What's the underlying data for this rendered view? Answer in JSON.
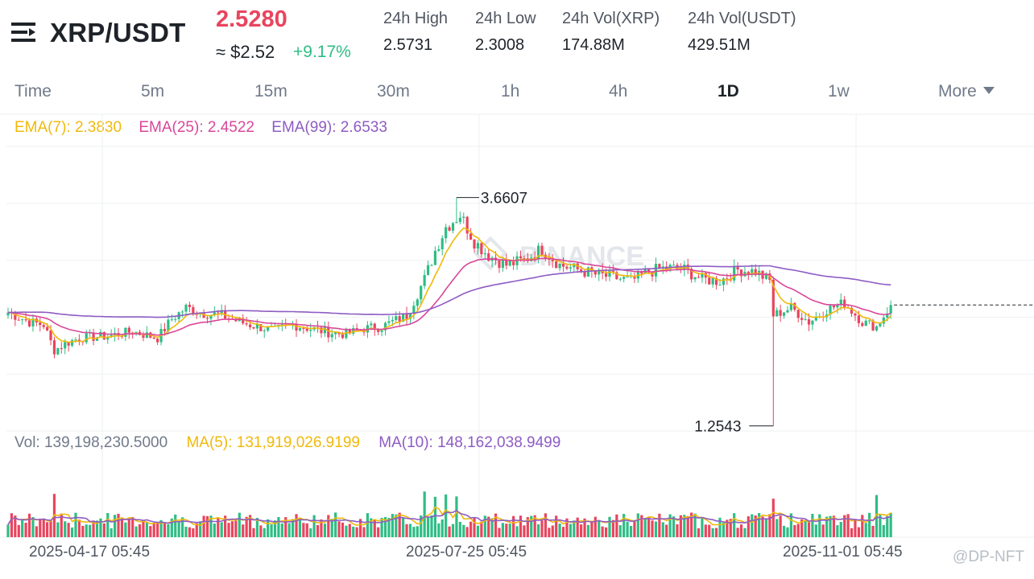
{
  "header": {
    "pair": "XRP/USDT",
    "last_price": "2.5280",
    "approx_price": "≈ $2.52",
    "change": "+9.17%",
    "stats": [
      {
        "label": "24h High",
        "value": "2.5731"
      },
      {
        "label": "24h Low",
        "value": "2.3008"
      },
      {
        "label": "24h Vol(XRP)",
        "value": "174.88M"
      },
      {
        "label": "24h Vol(USDT)",
        "value": "429.51M"
      }
    ]
  },
  "tabs": [
    {
      "label": "Time"
    },
    {
      "label": "5m"
    },
    {
      "label": "15m"
    },
    {
      "label": "30m"
    },
    {
      "label": "1h"
    },
    {
      "label": "4h"
    },
    {
      "label": "1D"
    },
    {
      "label": "1w"
    },
    {
      "label": "More"
    }
  ],
  "active_tab": "1D",
  "colors": {
    "up": "#2ebd85",
    "down": "#e8455e",
    "ema7": "#f0b90b",
    "ema25": "#d9479a",
    "ema99": "#8e5cc4",
    "ma5": "#f0b90b",
    "ma10": "#8e5cc4"
  },
  "watermark": "BINANCE",
  "footer_watermark": "@DP-NFT",
  "chart_data": {
    "type": "candlestick",
    "interval": "1D",
    "indicators": {
      "ema7": {
        "label": "EMA(7): 2.3830",
        "value": 2.383
      },
      "ema25": {
        "label": "EMA(25): 2.4522",
        "value": 2.4522
      },
      "ema99": {
        "label": "EMA(99): 2.6533",
        "value": 2.6533
      }
    },
    "annotations": {
      "high": {
        "label": "3.6607",
        "value": 3.6607
      },
      "low": {
        "label": "1.2543",
        "value": 1.2543
      }
    },
    "last_price": 2.528,
    "y_range": [
      1.2,
      4.2
    ],
    "grid": true,
    "x_labels": [
      "2025-04-17 05:45",
      "2025-07-25 05:45",
      "2025-11-01 05:45"
    ],
    "volume": {
      "vol_label": "Vol: 139,198,230.5000",
      "ma5_label": "MA(5): 131,919,026.9199",
      "ma10_label": "MA(10): 148,162,038.9499"
    },
    "close_path": [
      [
        0,
        2.45
      ],
      [
        6,
        2.35
      ],
      [
        10,
        2.32
      ],
      [
        13,
        2.05
      ],
      [
        16,
        2.12
      ],
      [
        20,
        2.18
      ],
      [
        28,
        2.2
      ],
      [
        35,
        2.25
      ],
      [
        42,
        2.18
      ],
      [
        46,
        2.38
      ],
      [
        50,
        2.5
      ],
      [
        55,
        2.44
      ],
      [
        60,
        2.42
      ],
      [
        65,
        2.35
      ],
      [
        70,
        2.3
      ],
      [
        75,
        2.26
      ],
      [
        80,
        2.32
      ],
      [
        85,
        2.28
      ],
      [
        90,
        2.24
      ],
      [
        95,
        2.22
      ],
      [
        100,
        2.28
      ],
      [
        105,
        2.3
      ],
      [
        112,
        2.42
      ],
      [
        117,
        2.8
      ],
      [
        120,
        3.1
      ],
      [
        123,
        3.35
      ],
      [
        127,
        3.48
      ],
      [
        131,
        3.2
      ],
      [
        135,
        3.05
      ],
      [
        140,
        2.95
      ],
      [
        145,
        3.0
      ],
      [
        150,
        3.12
      ],
      [
        155,
        2.95
      ],
      [
        160,
        2.9
      ],
      [
        165,
        2.85
      ],
      [
        170,
        2.82
      ],
      [
        175,
        2.78
      ],
      [
        180,
        2.88
      ],
      [
        185,
        2.92
      ],
      [
        190,
        2.9
      ],
      [
        195,
        2.8
      ],
      [
        200,
        2.78
      ],
      [
        205,
        2.9
      ],
      [
        210,
        2.88
      ],
      [
        214,
        2.78
      ],
      [
        215,
        2.42
      ],
      [
        220,
        2.5
      ],
      [
        225,
        2.35
      ],
      [
        230,
        2.48
      ],
      [
        235,
        2.55
      ],
      [
        240,
        2.35
      ],
      [
        244,
        2.3
      ],
      [
        248,
        2.528
      ]
    ]
  }
}
